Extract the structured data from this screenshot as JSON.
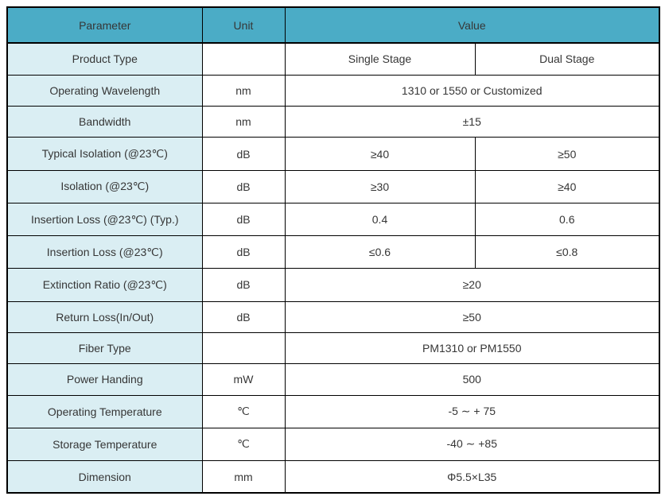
{
  "colors": {
    "header_bg": "#4BACC6",
    "label_bg": "#DAEEF3",
    "value_bg": "#ffffff",
    "border": "#000000",
    "text": "#363636"
  },
  "table": {
    "header": {
      "parameter": "Parameter",
      "unit": "Unit",
      "value": "Value"
    },
    "rows": [
      {
        "parameter": "Product Type",
        "unit": "",
        "values": [
          "Single Stage",
          "Dual Stage"
        ]
      },
      {
        "parameter": "Operating Wavelength",
        "unit": "nm",
        "value": "1310 or 1550 or Customized"
      },
      {
        "parameter": "Bandwidth",
        "unit": "nm",
        "value": "±15"
      },
      {
        "parameter": "Typical Isolation (@23℃)",
        "unit": "dB",
        "values": [
          "≥40",
          "≥50"
        ]
      },
      {
        "parameter": "Isolation (@23℃)",
        "unit": "dB",
        "values": [
          "≥30",
          "≥40"
        ]
      },
      {
        "parameter": "Insertion Loss (@23℃) (Typ.)",
        "unit": "dB",
        "values": [
          "0.4",
          "0.6"
        ]
      },
      {
        "parameter": "Insertion Loss (@23℃)",
        "unit": "dB",
        "values": [
          "≤0.6",
          "≤0.8"
        ]
      },
      {
        "parameter": "Extinction Ratio (@23℃)",
        "unit": "dB",
        "value": "≥20"
      },
      {
        "parameter": "Return Loss(In/Out)",
        "unit": "dB",
        "value": "≥50"
      },
      {
        "parameter": "Fiber Type",
        "unit": "",
        "value": "PM1310 or PM1550"
      },
      {
        "parameter": "Power Handing",
        "unit": "mW",
        "value": "500"
      },
      {
        "parameter": "Operating Temperature",
        "unit": "℃",
        "value": "-5  ∼  + 75"
      },
      {
        "parameter": "Storage Temperature",
        "unit": "℃",
        "value": "-40  ∼  +85"
      },
      {
        "parameter": "Dimension",
        "unit": "mm",
        "value": "Φ5.5×L35"
      }
    ]
  }
}
